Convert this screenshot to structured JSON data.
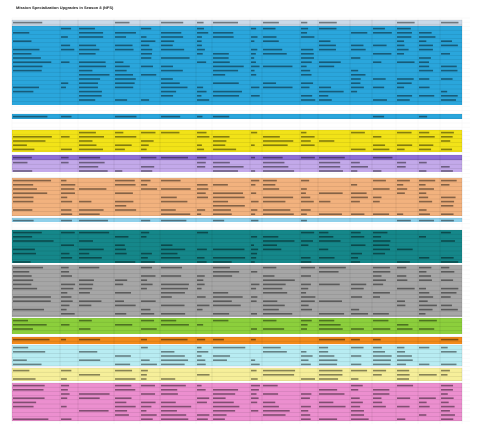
{
  "sheet": {
    "title": "Mission Specialization Upgrades in Season 8 (NFS)"
  }
}
